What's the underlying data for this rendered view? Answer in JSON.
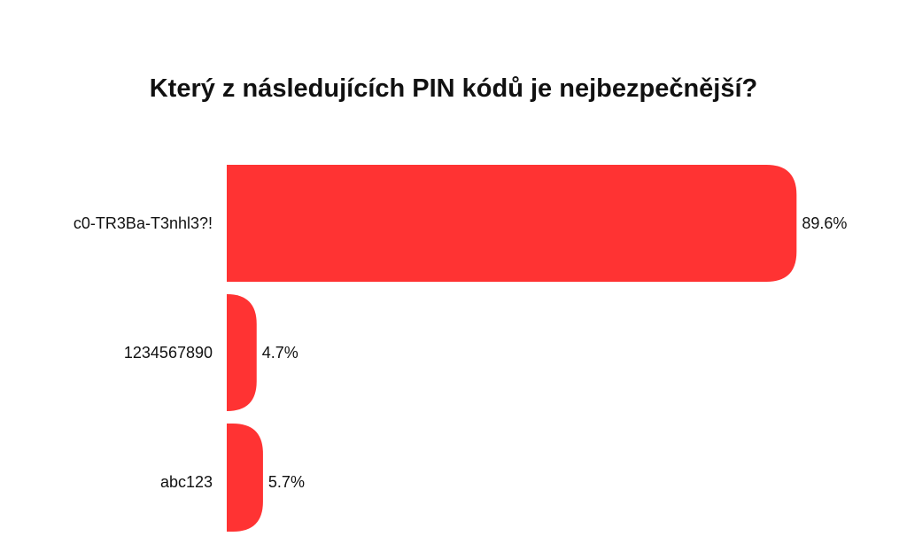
{
  "chart_data": {
    "type": "bar",
    "orientation": "horizontal",
    "title": "Který z následujících PIN kódů je nejbezpečnější?",
    "categories": [
      "c0-TR3Ba-T3nhl3?!",
      "1234567890",
      "abc123"
    ],
    "values": [
      89.6,
      4.7,
      5.7
    ],
    "value_labels": [
      "89.6%",
      "4.7%",
      "5.7%"
    ],
    "unit": "%",
    "xlim": [
      0,
      100
    ],
    "grid": false,
    "legend": "none",
    "bar_color": "#ff3333"
  }
}
